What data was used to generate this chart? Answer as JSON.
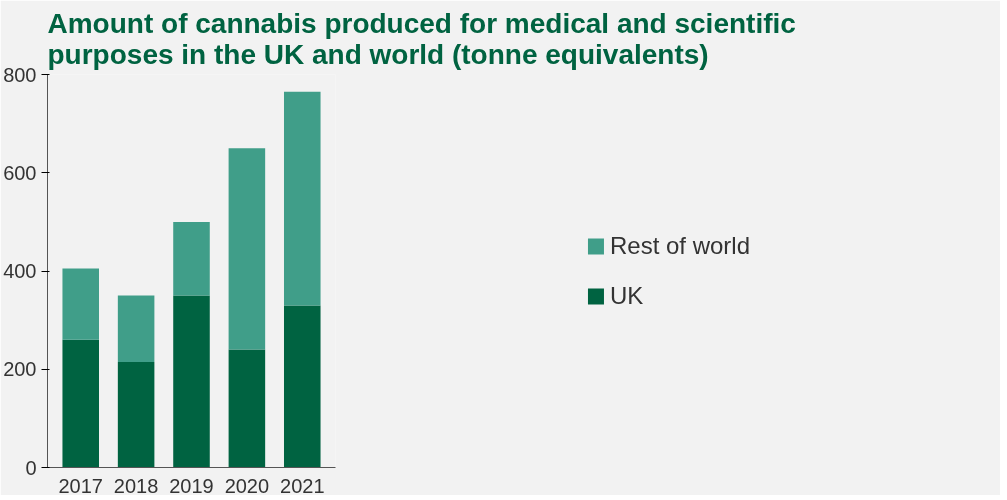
{
  "chart_data": {
    "type": "bar",
    "title": "Amount of cannabis produced for medical and scientific purposes in the UK and world (tonne equivalents)",
    "categories": [
      "2017",
      "2018",
      "2019",
      "2020",
      "2021"
    ],
    "stacked": true,
    "series": [
      {
        "name": "UK",
        "color": "#006341",
        "values": [
          260,
          215,
          350,
          240,
          330
        ]
      },
      {
        "name": "Rest of world",
        "color": "#409e89",
        "values": [
          145,
          135,
          150,
          410,
          435
        ]
      }
    ],
    "ylim": [
      0,
      800
    ],
    "yticks": [
      0,
      200,
      400,
      600,
      800
    ],
    "grid": false,
    "legend": "right"
  }
}
